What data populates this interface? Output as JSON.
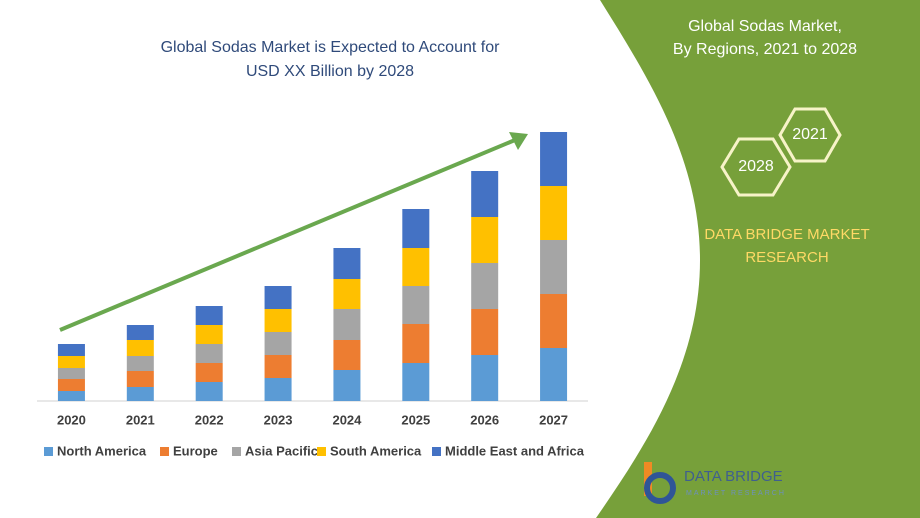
{
  "chart_data": {
    "type": "stacked-bar",
    "title": [
      "Global Sodas Market is Expected to Account for",
      "USD XX Billion by 2028"
    ],
    "categories": [
      "2020",
      "2021",
      "2022",
      "2023",
      "2024",
      "2025",
      "2026",
      "2027"
    ],
    "series": [
      {
        "name": "North America",
        "color": "#5b9bd5",
        "values": [
          10,
          14,
          19,
          23,
          31,
          38,
          46,
          53
        ]
      },
      {
        "name": "Europe",
        "color": "#ed7d31",
        "values": [
          12,
          16,
          19,
          23,
          30,
          39,
          46,
          54
        ]
      },
      {
        "name": "Asia Pacific",
        "color": "#a5a5a5",
        "values": [
          11,
          15,
          19,
          23,
          31,
          38,
          46,
          54
        ]
      },
      {
        "name": "South America",
        "color": "#ffc000",
        "values": [
          12,
          16,
          19,
          23,
          30,
          38,
          46,
          54
        ]
      },
      {
        "name": "Middle East and Africa",
        "color": "#4472c4",
        "values": [
          12,
          15,
          19,
          23,
          31,
          39,
          46,
          54
        ]
      }
    ]
  },
  "panel": {
    "title": [
      "Global Sodas Market,",
      "By Regions, 2021 to 2028"
    ],
    "badges": [
      "2021",
      "2028"
    ],
    "brand": [
      "DATA BRIDGE MARKET",
      "RESEARCH"
    ]
  },
  "logo": {
    "name": "DATA BRIDGE",
    "tagline": "MARKET RESEARCH"
  }
}
